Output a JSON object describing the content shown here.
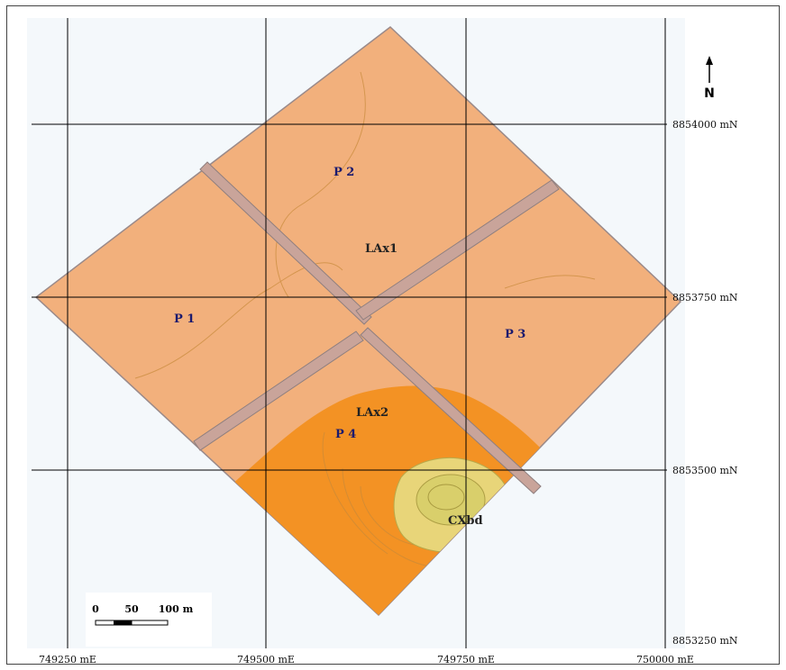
{
  "north_arrow": {
    "label": "N"
  },
  "grid": {
    "easting_labels": [
      "749250 mE",
      "749500 mE",
      "749750 mE",
      "750000 mE"
    ],
    "northing_labels": [
      "8854000 mN",
      "8853750 mN",
      "8853500 mN",
      "8853250 mN"
    ]
  },
  "plots": {
    "p1": "P 1",
    "p2": "P 2",
    "p3": "P 3",
    "p4": "P 4"
  },
  "soil_units": {
    "lax1": "LAx1",
    "lax2": "LAx2",
    "cxbd": "CXbd"
  },
  "scale_bar": {
    "ticks": [
      "0",
      "50",
      "100 m"
    ]
  },
  "colors": {
    "lax1": "#f2b07c",
    "lax2": "#f39224",
    "cxbd": "#e8d579",
    "cxbd_core": "#d8cf6a",
    "grid": "#000000",
    "plot_text": "#1a1a6e"
  }
}
